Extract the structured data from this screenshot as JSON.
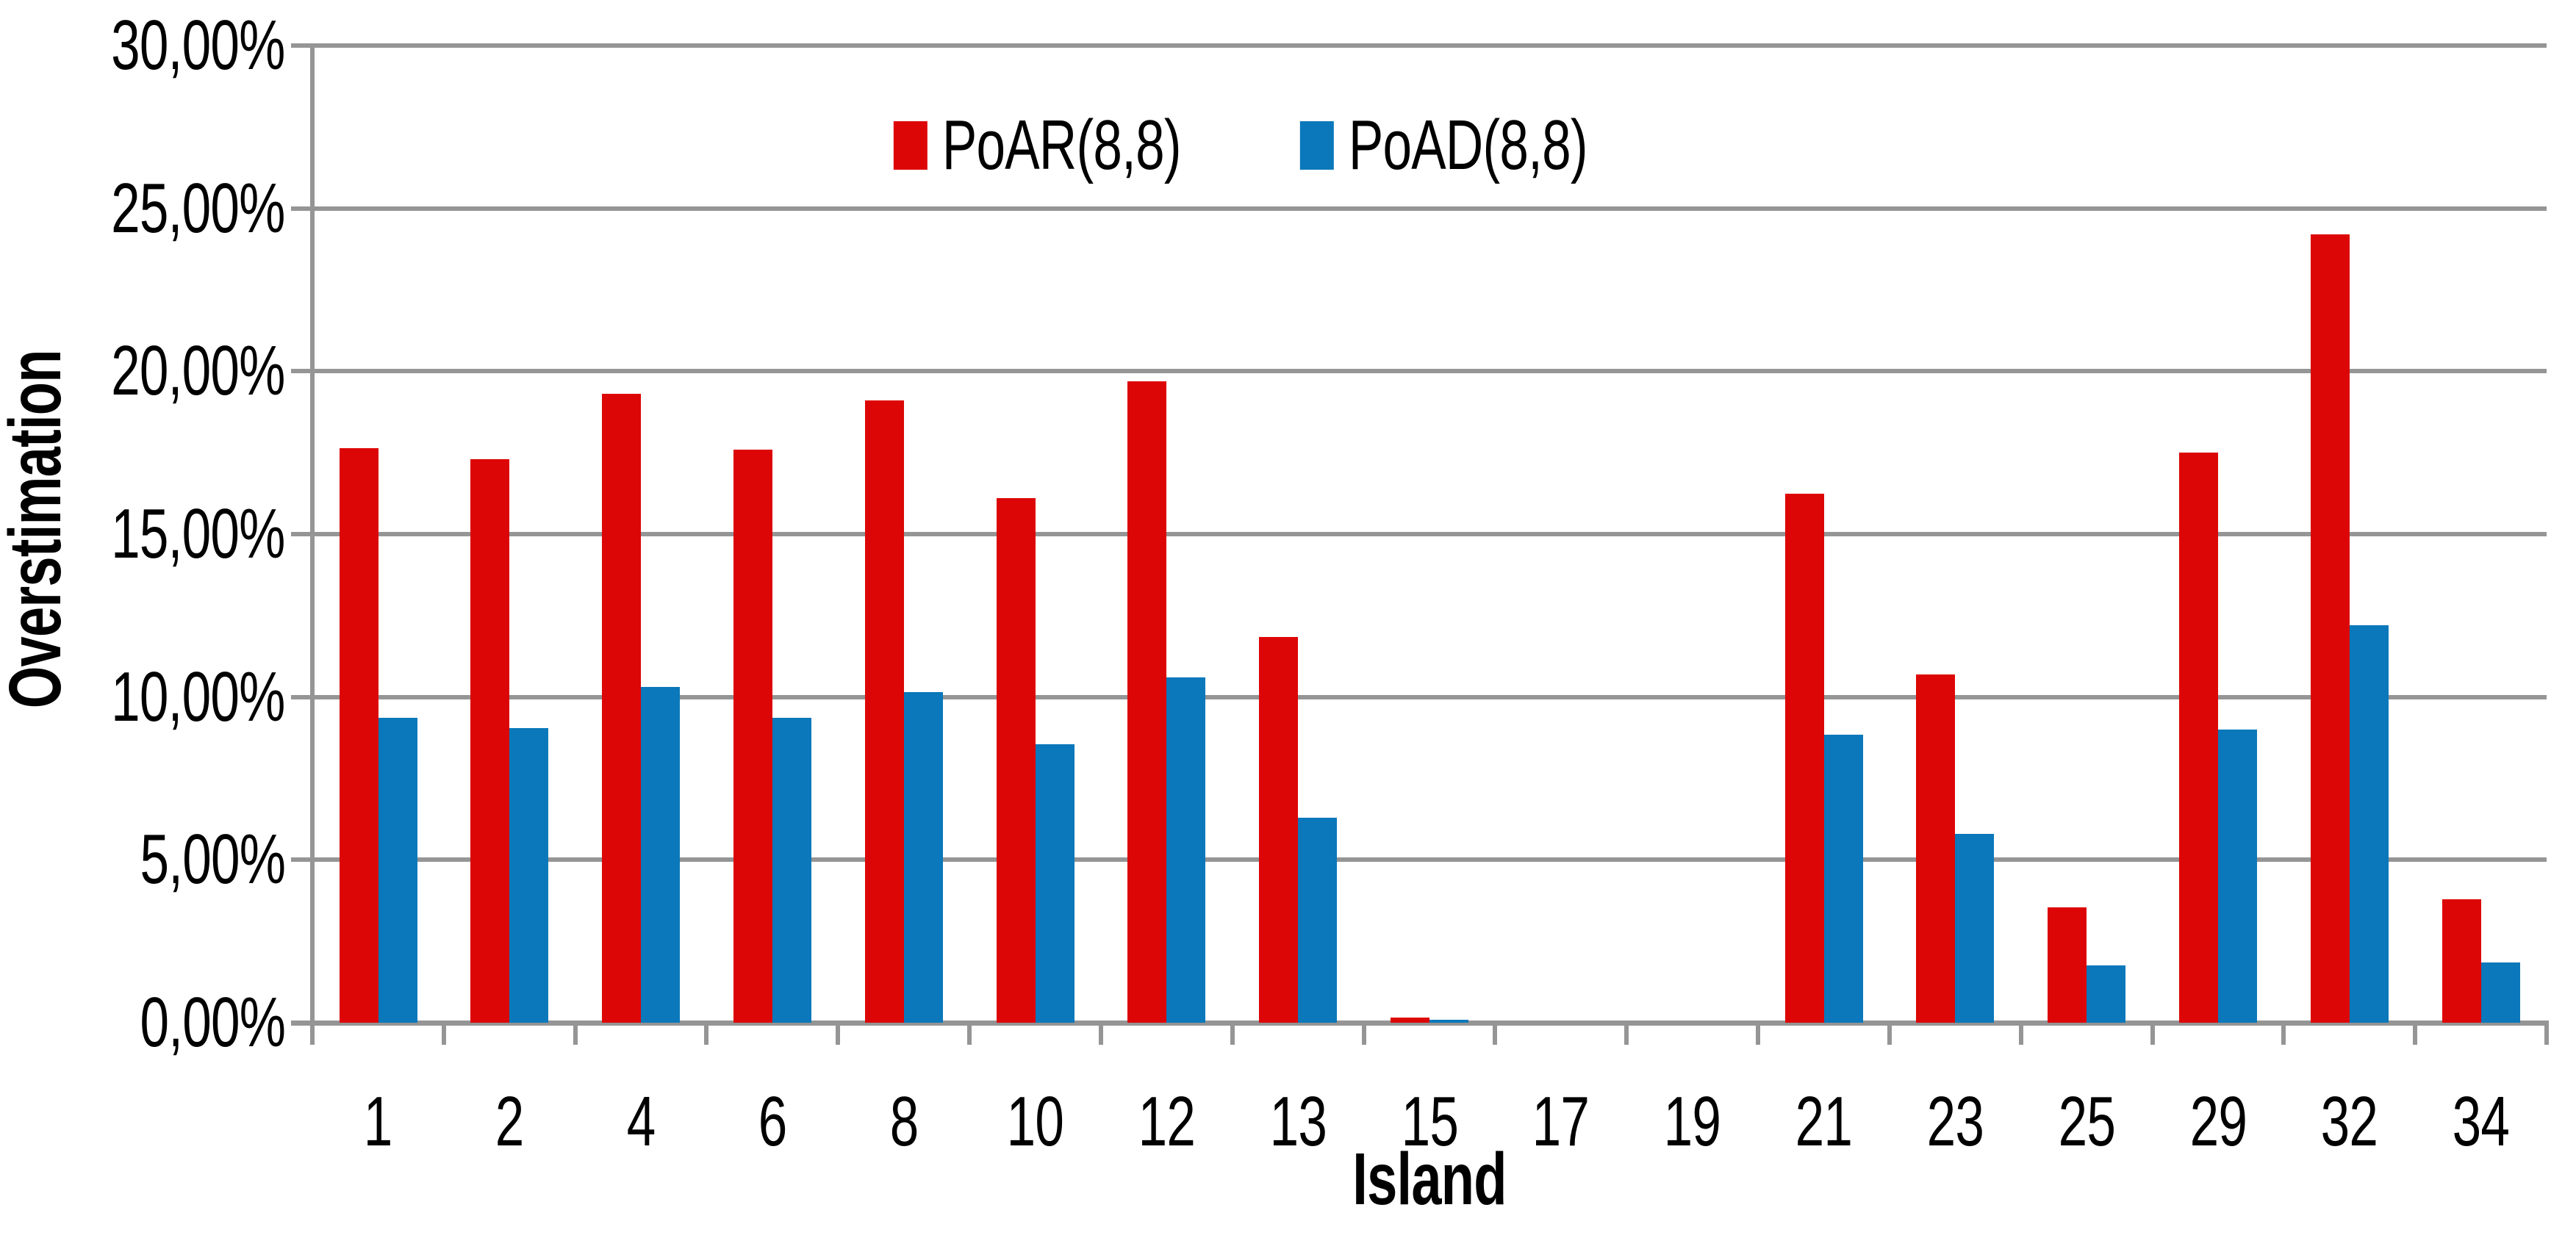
{
  "chart_data": {
    "type": "bar",
    "title": "",
    "xlabel": "Island",
    "ylabel": "Overstimation",
    "categories": [
      "1",
      "2",
      "4",
      "6",
      "8",
      "10",
      "12",
      "13",
      "15",
      "17",
      "19",
      "21",
      "23",
      "25",
      "29",
      "32",
      "34"
    ],
    "series": [
      {
        "name": "PoAR(8,8)",
        "color": "#dd0606",
        "values": [
          17.65,
          17.3,
          19.3,
          17.6,
          19.1,
          16.1,
          19.7,
          11.85,
          0.15,
          0,
          0,
          16.25,
          10.7,
          3.55,
          17.5,
          24.2,
          3.8
        ]
      },
      {
        "name": "PoAD(8,8)",
        "color": "#0a78ba",
        "values": [
          9.35,
          9.05,
          10.3,
          9.35,
          10.15,
          8.55,
          10.6,
          6.3,
          0.08,
          0,
          0,
          8.85,
          5.8,
          1.75,
          9.0,
          12.2,
          1.85
        ]
      }
    ],
    "y_axis": {
      "min": 0,
      "max": 30,
      "tick_step": 5,
      "tick_labels": [
        "0,00%",
        "5,00%",
        "10,00%",
        "15,00%",
        "20,00%",
        "25,00%",
        "30,00%"
      ]
    },
    "x_axis": {
      "tick_count": 18
    },
    "legend_position": "top-center",
    "grid": true,
    "gridline_color": "#959595",
    "background_color": "#ffffff",
    "text_color": "#000000"
  }
}
